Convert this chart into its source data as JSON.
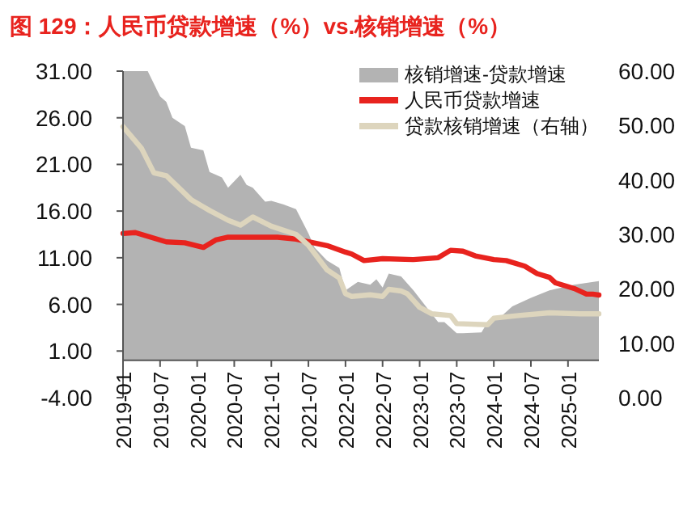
{
  "chart_data": {
    "type": "line",
    "title": "图 129：人民币贷款增速（%）vs.核销增速（%）",
    "legend": "top right",
    "xlim": [
      "2019-01",
      "2025-06"
    ],
    "xticks": [
      "2019-01",
      "2019-07",
      "2020-01",
      "2020-07",
      "2021-01",
      "2021-07",
      "2022-01",
      "2022-07",
      "2023-01",
      "2023-07",
      "2024-01",
      "2024-07",
      "2025-01"
    ],
    "ylim": [
      -4,
      31
    ],
    "yticks": [
      {
        "value": -4,
        "label": "-4.00"
      },
      {
        "value": 1,
        "label": "1.00"
      },
      {
        "value": 6,
        "label": "6.00"
      },
      {
        "value": 11,
        "label": "11.00"
      },
      {
        "value": 16,
        "label": "16.00"
      },
      {
        "value": 21,
        "label": "21.00"
      },
      {
        "value": 26,
        "label": "26.00"
      },
      {
        "value": 31,
        "label": "31.00"
      }
    ],
    "y2lim": [
      0,
      60
    ],
    "y2ticks": [
      {
        "value": 0,
        "label": "0.00"
      },
      {
        "value": 10,
        "label": "10.00"
      },
      {
        "value": 20,
        "label": "20.00"
      },
      {
        "value": 30,
        "label": "30.00"
      },
      {
        "value": 40,
        "label": "40.00"
      },
      {
        "value": 50,
        "label": "50.00"
      },
      {
        "value": 60,
        "label": "60.00"
      }
    ],
    "series": [
      {
        "name": "核销增速-贷款增速",
        "type": "area",
        "color": "#b3b3b3",
        "x": [
          "2019-01",
          "2019-05",
          "2019-07",
          "2019-08",
          "2019-09",
          "2019-11",
          "2019-12",
          "2020-02",
          "2020-03",
          "2020-05",
          "2020-06",
          "2020-08",
          "2020-09",
          "2020-10",
          "2020-12",
          "2021-01",
          "2021-03",
          "2021-05",
          "2021-07",
          "2021-08",
          "2021-10",
          "2021-12",
          "2022-01",
          "2022-03",
          "2022-05",
          "2022-06",
          "2022-07",
          "2022-08",
          "2022-10",
          "2022-12",
          "2023-02",
          "2023-04",
          "2023-05",
          "2023-07",
          "2023-08",
          "2023-11",
          "2023-12",
          "2024-02",
          "2024-04",
          "2024-07",
          "2024-10",
          "2025-02",
          "2025-06"
        ],
        "values": [
          31,
          31,
          28.3,
          27.7,
          26.0,
          25.1,
          22.8,
          22.5,
          20.2,
          19.6,
          18.5,
          19.9,
          18.8,
          18.5,
          17.0,
          17.1,
          16.7,
          16.2,
          13.6,
          12.1,
          10.7,
          9.9,
          7.5,
          8.4,
          8.1,
          8.7,
          7.8,
          9.3,
          9.0,
          7.5,
          5.8,
          4.1,
          4.1,
          2.9,
          2.9,
          3.0,
          4.1,
          4.6,
          5.8,
          6.7,
          7.5,
          8.1,
          8.5
        ]
      },
      {
        "name": "人民币贷款增速",
        "color": "#e8231e",
        "x": [
          "2019-01",
          "2019-03",
          "2019-08",
          "2019-11",
          "2020-02",
          "2020-04",
          "2020-06",
          "2021-02",
          "2021-05",
          "2021-10",
          "2022-01",
          "2022-02",
          "2022-04",
          "2022-07",
          "2022-12",
          "2023-04",
          "2023-06",
          "2023-08",
          "2023-10",
          "2024-01",
          "2024-03",
          "2024-06",
          "2024-08",
          "2024-10",
          "2024-11",
          "2025-02",
          "2025-04",
          "2025-05",
          "2025-06"
        ],
        "values": [
          13.6,
          13.7,
          12.7,
          12.6,
          12.1,
          12.9,
          13.2,
          13.2,
          13.0,
          12.3,
          11.6,
          11.4,
          10.7,
          10.9,
          10.8,
          11.0,
          11.8,
          11.7,
          11.2,
          10.8,
          10.7,
          10.1,
          9.3,
          8.9,
          8.3,
          7.7,
          7.1,
          7.1,
          7.0
        ]
      },
      {
        "name": "贷款核销增速（右轴）",
        "type": "line",
        "axis": "y2",
        "color": "#ddd5bd",
        "x": [
          "2019-01",
          "2019-04",
          "2019-06",
          "2019-08",
          "2019-12",
          "2020-03",
          "2020-06",
          "2020-08",
          "2020-10",
          "2021-01",
          "2021-05",
          "2021-07",
          "2021-10",
          "2021-12",
          "2022-01",
          "2022-02",
          "2022-05",
          "2022-07",
          "2022-08",
          "2022-10",
          "2022-11",
          "2023-01",
          "2023-03",
          "2023-06",
          "2023-07",
          "2023-12",
          "2024-01",
          "2024-05",
          "2024-10",
          "2025-03",
          "2025-06"
        ],
        "values": [
          49.8,
          45.8,
          41.3,
          40.8,
          36.4,
          34.4,
          32.6,
          31.7,
          33.2,
          31.5,
          30.0,
          28.0,
          23.5,
          22.0,
          19.1,
          18.6,
          18.9,
          18.6,
          19.9,
          19.6,
          19.1,
          16.6,
          15.4,
          15.1,
          13.6,
          13.4,
          14.6,
          15.1,
          15.6,
          15.4,
          15.4
        ]
      }
    ]
  }
}
